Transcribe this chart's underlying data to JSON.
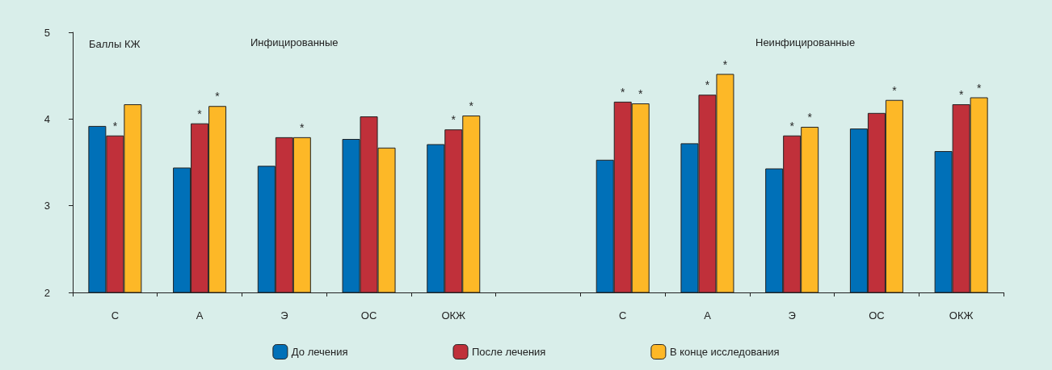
{
  "chart_data": {
    "type": "bar",
    "ylabel": "Баллы КЖ",
    "categories": [
      "С",
      "А",
      "Э",
      "ОС",
      "ОКЖ",
      null,
      "С",
      "А",
      "Э",
      "ОС",
      "ОКЖ"
    ],
    "series": [
      {
        "name": "До лечения",
        "color": "#0070b8",
        "values": [
          3.92,
          3.44,
          3.46,
          3.77,
          3.71,
          null,
          3.53,
          3.72,
          3.43,
          3.89,
          3.63
        ],
        "value_labels": [
          null,
          null,
          null,
          null,
          null,
          null,
          null,
          null,
          null,
          null,
          null
        ]
      },
      {
        "name": "После лечения",
        "color": "#c0303a",
        "values": [
          3.81,
          3.95,
          3.79,
          4.03,
          3.88,
          null,
          4.2,
          4.28,
          3.81,
          4.07,
          4.17
        ],
        "value_labels": [
          "*",
          "*",
          null,
          null,
          "*",
          null,
          "*",
          "*",
          "*",
          null,
          "*"
        ]
      },
      {
        "name": "В конце исследования",
        "color": "#fdb827",
        "values": [
          4.17,
          4.15,
          3.79,
          3.67,
          4.04,
          null,
          4.18,
          4.52,
          3.91,
          4.22,
          4.25
        ],
        "value_labels": [
          null,
          "*",
          "*",
          null,
          "*",
          null,
          "*",
          "*",
          "*",
          "*",
          "*"
        ]
      }
    ],
    "ylim": [
      2,
      5
    ],
    "yticks": [
      2,
      3,
      4,
      5
    ],
    "grid": false,
    "legend": "bottom",
    "annotations": [
      "Инфицированные",
      "Неинфицированные"
    ]
  }
}
